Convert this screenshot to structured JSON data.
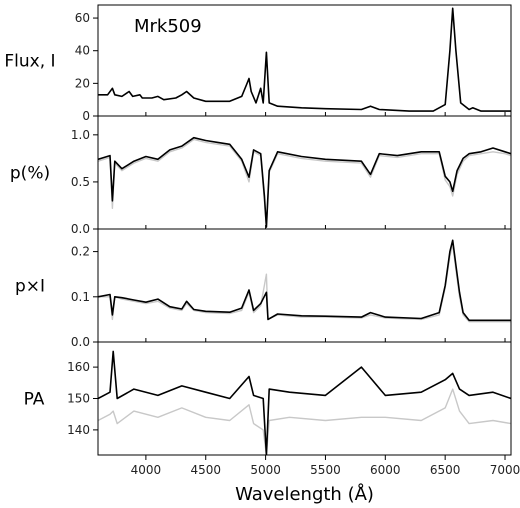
{
  "chart_data": {
    "type": "line",
    "object_label": "Mrk509",
    "xlabel": "Wavelength (Å)",
    "xlim": [
      3600,
      7050
    ],
    "xticks": [
      "4000",
      "4500",
      "5000",
      "5500",
      "6000",
      "6500",
      "7000"
    ],
    "panels": [
      {
        "ylabel": "Flux, I",
        "ylim": [
          0,
          68
        ],
        "yticks": [
          "0",
          "20",
          "40",
          "60"
        ],
        "series": [
          {
            "color": "#000000",
            "x": [
              3600,
              3680,
              3720,
              3740,
              3800,
              3860,
              3890,
              3950,
              3970,
              4050,
              4100,
              4150,
              4250,
              4300,
              4340,
              4400,
              4500,
              4600,
              4700,
              4800,
              4840,
              4861,
              4880,
              4920,
              4959,
              4980,
              5007,
              5030,
              5100,
              5300,
              5500,
              5800,
              5876,
              5950,
              6200,
              6400,
              6500,
              6540,
              6563,
              6590,
              6630,
              6700,
              6730,
              6800,
              7050
            ],
            "y": [
              13,
              13,
              17,
              13,
              12,
              15,
              12,
              13,
              11,
              11,
              12,
              10,
              11,
              13,
              15,
              11,
              9,
              9,
              9,
              12,
              19,
              23,
              15,
              8,
              17,
              8,
              39,
              8,
              6,
              5,
              4.5,
              4,
              6,
              4,
              3,
              3,
              7,
              40,
              66,
              40,
              8,
              4,
              5,
              3,
              3
            ]
          }
        ]
      },
      {
        "ylabel": "p(%)",
        "ylim": [
          0,
          1.2
        ],
        "yticks": [
          "0.0",
          "0.5",
          "1.0"
        ],
        "series": [
          {
            "color": "#c8c8c8",
            "x": [
              3600,
              3700,
              3720,
              3740,
              3800,
              3900,
              4000,
              4100,
              4200,
              4300,
              4400,
              4500,
              4600,
              4700,
              4800,
              4861,
              4900,
              4959,
              4990,
              5007,
              5030,
              5100,
              5300,
              5500,
              5800,
              5876,
              5950,
              6100,
              6300,
              6450,
              6500,
              6540,
              6563,
              6600,
              6650,
              6700,
              6800,
              6900,
              7000,
              7050
            ],
            "y": [
              0.72,
              0.76,
              0.22,
              0.7,
              0.62,
              0.7,
              0.75,
              0.72,
              0.82,
              0.86,
              0.95,
              0.92,
              0.9,
              0.88,
              0.72,
              0.5,
              0.82,
              0.78,
              0.3,
              0.02,
              0.6,
              0.8,
              0.75,
              0.72,
              0.7,
              0.55,
              0.78,
              0.76,
              0.8,
              0.8,
              0.52,
              0.45,
              0.35,
              0.58,
              0.72,
              0.78,
              0.8,
              0.82,
              0.8,
              0.78
            ]
          },
          {
            "color": "#000000",
            "x": [
              3600,
              3700,
              3720,
              3740,
              3800,
              3900,
              4000,
              4100,
              4200,
              4300,
              4400,
              4500,
              4600,
              4700,
              4800,
              4861,
              4900,
              4959,
              4990,
              5007,
              5030,
              5100,
              5300,
              5500,
              5800,
              5876,
              5950,
              6100,
              6300,
              6450,
              6500,
              6540,
              6563,
              6600,
              6650,
              6700,
              6800,
              6900,
              7000,
              7050
            ],
            "y": [
              0.74,
              0.78,
              0.3,
              0.72,
              0.64,
              0.72,
              0.77,
              0.74,
              0.84,
              0.88,
              0.97,
              0.94,
              0.92,
              0.9,
              0.74,
              0.55,
              0.84,
              0.8,
              0.35,
              0.02,
              0.62,
              0.82,
              0.77,
              0.74,
              0.72,
              0.58,
              0.8,
              0.78,
              0.82,
              0.82,
              0.56,
              0.5,
              0.4,
              0.62,
              0.75,
              0.8,
              0.82,
              0.86,
              0.82,
              0.8
            ]
          }
        ]
      },
      {
        "ylabel": "p×I",
        "ylim": [
          0,
          0.25
        ],
        "yticks": [
          "0.0",
          "0.1",
          "0.2"
        ],
        "series": [
          {
            "color": "#c8c8c8",
            "x": [
              3600,
              3700,
              3720,
              3740,
              3800,
              3900,
              4000,
              4100,
              4200,
              4300,
              4340,
              4400,
              4500,
              4700,
              4800,
              4861,
              4900,
              4959,
              5007,
              5020,
              5100,
              5300,
              5500,
              5800,
              5876,
              6000,
              6300,
              6450,
              6500,
              6540,
              6563,
              6590,
              6620,
              6650,
              6700,
              6800,
              7050
            ],
            "y": [
              0.1,
              0.1,
              0.05,
              0.1,
              0.095,
              0.09,
              0.085,
              0.09,
              0.075,
              0.07,
              0.085,
              0.07,
              0.065,
              0.063,
              0.07,
              0.11,
              0.065,
              0.08,
              0.15,
              0.05,
              0.06,
              0.055,
              0.055,
              0.053,
              0.06,
              0.053,
              0.05,
              0.06,
              0.12,
              0.19,
              0.215,
              0.16,
              0.1,
              0.06,
              0.045,
              0.045,
              0.045
            ]
          },
          {
            "color": "#000000",
            "x": [
              3600,
              3700,
              3720,
              3740,
              3800,
              3900,
              4000,
              4100,
              4200,
              4300,
              4340,
              4400,
              4500,
              4700,
              4800,
              4861,
              4900,
              4959,
              5007,
              5020,
              5100,
              5300,
              5500,
              5800,
              5876,
              6000,
              6300,
              6450,
              6500,
              6540,
              6563,
              6590,
              6620,
              6650,
              6700,
              6800,
              7050
            ],
            "y": [
              0.1,
              0.105,
              0.06,
              0.1,
              0.098,
              0.093,
              0.088,
              0.095,
              0.078,
              0.073,
              0.09,
              0.072,
              0.068,
              0.066,
              0.075,
              0.115,
              0.07,
              0.085,
              0.11,
              0.05,
              0.062,
              0.058,
              0.057,
              0.055,
              0.065,
              0.055,
              0.052,
              0.065,
              0.125,
              0.2,
              0.225,
              0.17,
              0.11,
              0.065,
              0.048,
              0.048,
              0.048
            ]
          }
        ]
      },
      {
        "ylabel": "PA",
        "ylim": [
          132,
          168
        ],
        "yticks": [
          "140",
          "150",
          "160"
        ],
        "series": [
          {
            "color": "#c8c8c8",
            "x": [
              3600,
              3700,
              3727,
              3760,
              3900,
              4100,
              4300,
              4500,
              4700,
              4861,
              4900,
              4980,
              5007,
              5030,
              5200,
              5500,
              5800,
              6000,
              6300,
              6500,
              6563,
              6620,
              6700,
              6900,
              7050
            ],
            "y": [
              143,
              145,
              146,
              142,
              146,
              144,
              147,
              144,
              143,
              148,
              142,
              140,
              132,
              143,
              144,
              143,
              144,
              144,
              143,
              147,
              153,
              146,
              142,
              143,
              142
            ]
          },
          {
            "color": "#000000",
            "x": [
              3600,
              3700,
              3727,
              3760,
              3900,
              4100,
              4300,
              4500,
              4700,
              4861,
              4900,
              4980,
              5007,
              5030,
              5200,
              5500,
              5800,
              6000,
              6300,
              6500,
              6563,
              6620,
              6700,
              6900,
              7050
            ],
            "y": [
              150,
              152,
              165,
              150,
              153,
              151,
              154,
              152,
              150,
              157,
              151,
              150,
              132,
              153,
              152,
              151,
              160,
              151,
              152,
              156,
              158,
              153,
              151,
              152,
              150
            ]
          }
        ]
      }
    ]
  }
}
